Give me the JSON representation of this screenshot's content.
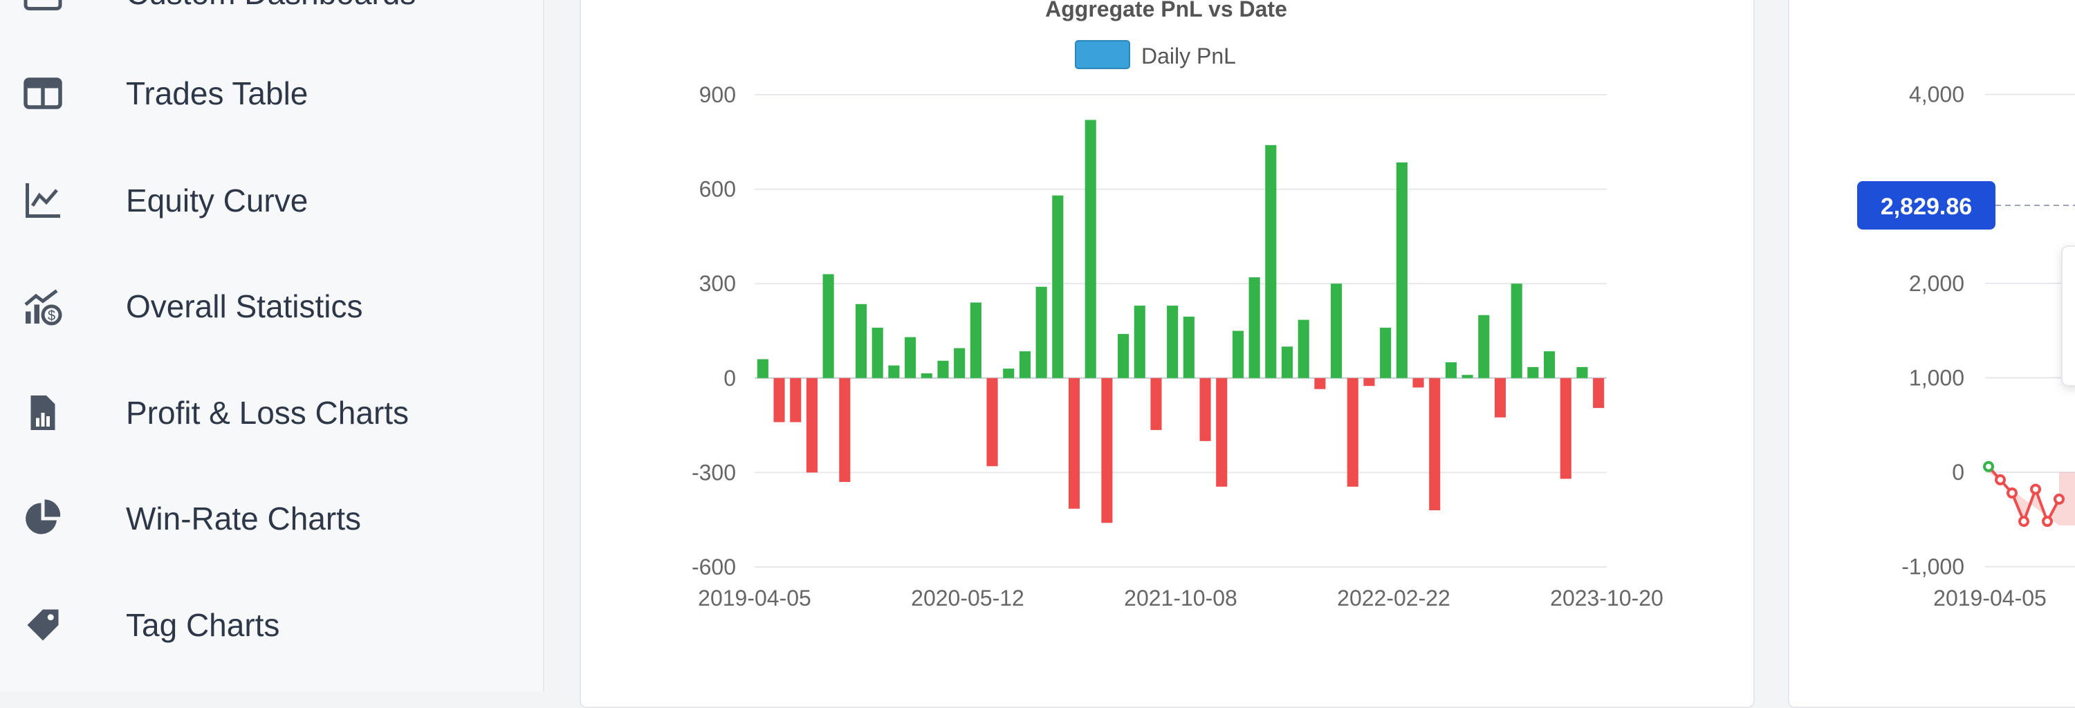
{
  "sidebar": {
    "items": [
      {
        "label": "Custom Dashboards",
        "icon": "dashboard-icon"
      },
      {
        "label": "Trades Table",
        "icon": "table-icon"
      },
      {
        "label": "Equity Curve",
        "icon": "line-chart-icon"
      },
      {
        "label": "Overall Statistics",
        "icon": "statistics-icon"
      },
      {
        "label": "Profit & Loss Charts",
        "icon": "pnl-report-icon"
      },
      {
        "label": "Win-Rate Charts",
        "icon": "pie-chart-icon"
      },
      {
        "label": "Tag Charts",
        "icon": "tag-icon"
      }
    ]
  },
  "colors": {
    "positive": "#34b349",
    "negative": "#ef4d4d",
    "legend": "#3ba1da",
    "highlight_badge": "#1d4fd8"
  },
  "main_chart": {
    "title": "Aggregate PnL vs Date",
    "legend_label": "Daily PnL"
  },
  "chart_data": [
    {
      "type": "bar",
      "title": "Aggregate PnL vs Date",
      "legend": [
        "Daily PnL"
      ],
      "ylim": [
        -600,
        900
      ],
      "yticks": [
        "900",
        "600",
        "300",
        "0",
        "-300",
        "-600"
      ],
      "xtick_labels": [
        "2019-04-05",
        "2020-05-12",
        "2021-10-08",
        "2022-02-22",
        "2023-10-20"
      ],
      "grid": true,
      "series": [
        {
          "name": "Daily PnL",
          "values": [
            60,
            -140,
            -140,
            -300,
            330,
            -330,
            235,
            160,
            40,
            130,
            15,
            55,
            95,
            240,
            -280,
            30,
            85,
            290,
            580,
            -415,
            820,
            -460,
            140,
            230,
            -165,
            230,
            195,
            -200,
            -345,
            150,
            320,
            740,
            100,
            185,
            -35,
            300,
            -345,
            -25,
            160,
            685,
            -30,
            -420,
            50,
            10,
            200,
            -125,
            300,
            35,
            85,
            -320,
            35,
            -95
          ]
        }
      ]
    },
    {
      "type": "line",
      "yticks": [
        "4,000",
        "2,000",
        "1,000",
        "0",
        "-1,000"
      ],
      "xtick_labels": [
        "2019-04-05"
      ],
      "highlight_value": "2,829.86",
      "series": [
        {
          "values": [
            60,
            -80,
            -220,
            -520,
            -180,
            -520,
            -285
          ]
        }
      ]
    }
  ]
}
